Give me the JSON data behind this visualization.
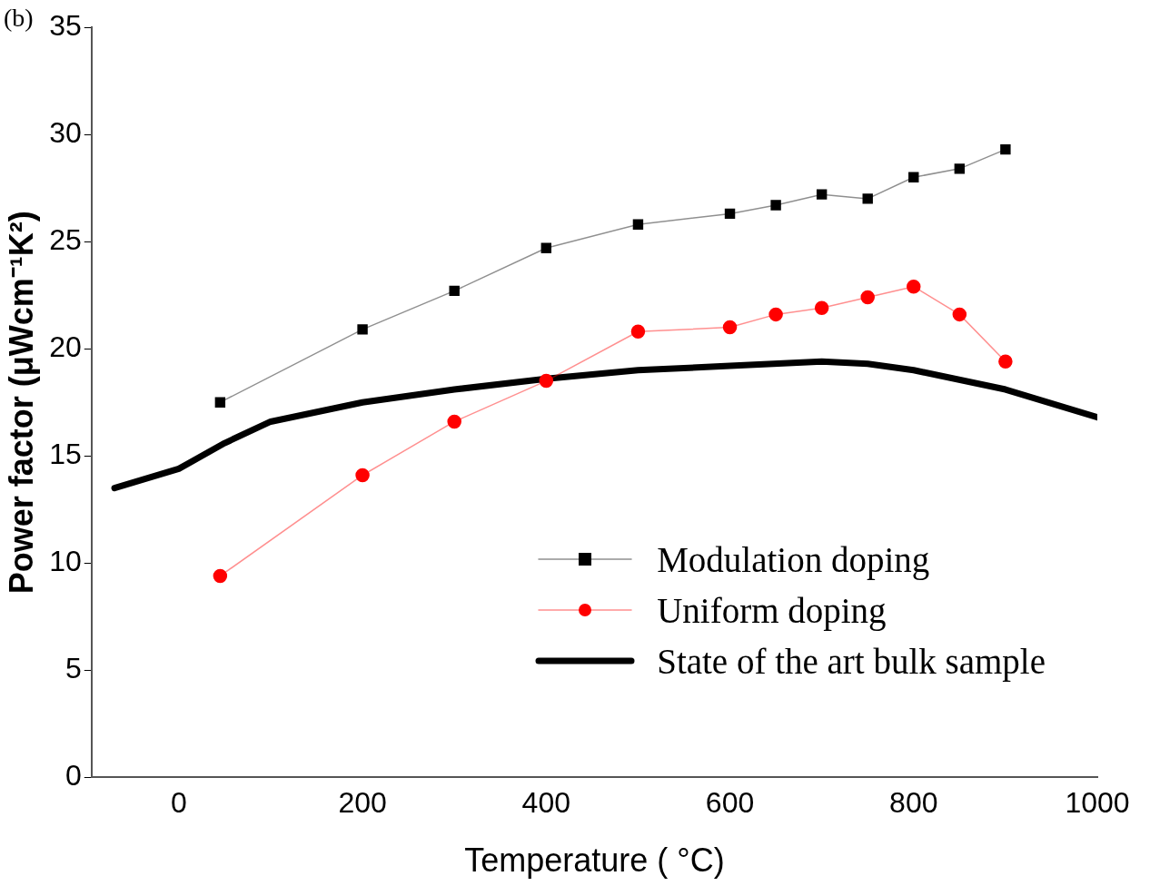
{
  "chart_data": {
    "type": "line",
    "xlabel": "Temperature ( °C)",
    "ylabel": "Power factor (μWcm⁻¹K²)",
    "annotations": [
      "(b)"
    ],
    "xlim": [
      -95,
      1000
    ],
    "xticks": [
      0,
      200,
      400,
      600,
      800,
      1000
    ],
    "ylim": [
      0,
      35
    ],
    "yticks": [
      0,
      5,
      10,
      15,
      20,
      25,
      30,
      35
    ],
    "grid": false,
    "legend": "bottom right",
    "line_style": "solid",
    "series": [
      {
        "name": "Modulation doping",
        "color": "#000000",
        "marker": "square",
        "x": [
          45,
          200,
          300,
          400,
          500,
          600,
          650,
          700,
          750,
          800,
          850,
          900
        ],
        "values": [
          17.5,
          20.9,
          22.7,
          24.7,
          25.8,
          26.3,
          26.7,
          27.2,
          27.0,
          28.0,
          28.4,
          29.3
        ]
      },
      {
        "name": "Uniform doping",
        "color": "#ff0000",
        "marker": "circle",
        "x": [
          45,
          200,
          300,
          400,
          500,
          600,
          650,
          700,
          750,
          800,
          850,
          900
        ],
        "values": [
          9.4,
          14.1,
          16.6,
          18.5,
          20.8,
          21.0,
          21.6,
          21.9,
          22.4,
          22.9,
          21.6,
          19.4
        ]
      },
      {
        "name": "State of the art bulk sample",
        "color": "#000000",
        "marker": "none",
        "x": [
          -70,
          0,
          50,
          100,
          200,
          300,
          400,
          500,
          600,
          700,
          750,
          800,
          900,
          1000
        ],
        "values": [
          13.5,
          14.4,
          15.6,
          16.6,
          17.5,
          18.1,
          18.6,
          19.0,
          19.2,
          19.4,
          19.3,
          19.0,
          18.1,
          16.8
        ]
      }
    ]
  }
}
